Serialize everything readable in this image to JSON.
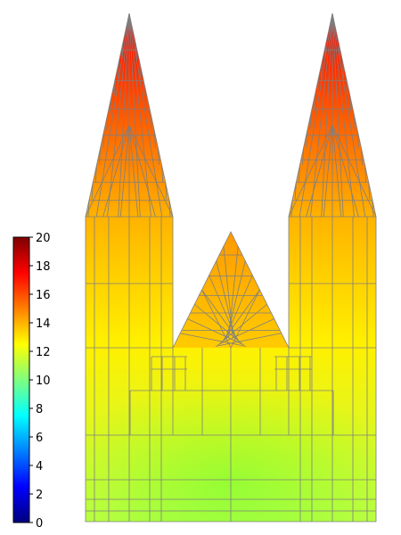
{
  "colorbar": {
    "min": 0,
    "max": 20,
    "ticks": [
      "0",
      "2",
      "4",
      "6",
      "8",
      "10",
      "12",
      "14",
      "16",
      "18",
      "20"
    ],
    "colormap": "jet"
  },
  "field": {
    "left_spire_tip_value": 17.5,
    "right_spire_tip_value": 17.5,
    "center_gable_tip_value": 14.5,
    "tower_top_value": 14.0,
    "mid_value": 12.8,
    "base_value": 11.2
  },
  "mesh_color": "#7f7f7f"
}
